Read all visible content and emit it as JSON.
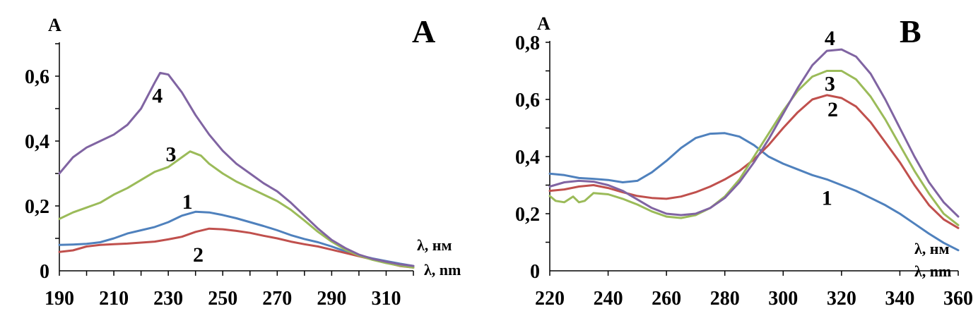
{
  "colors": {
    "1": "#4f81bd",
    "2": "#c0504d",
    "3": "#9bbb59",
    "4": "#8064a2"
  },
  "chart_data": [
    {
      "type": "line",
      "panel_label": "A",
      "ylabel": "A",
      "xlabel_ru": "λ, нм",
      "xlabel_en": "λ, nm",
      "xlim": [
        190,
        320
      ],
      "ylim": [
        0,
        0.7
      ],
      "x_ticks": [
        "190",
        "210",
        "230",
        "250",
        "270",
        "290",
        "310"
      ],
      "y_ticks": [
        "0",
        "0,2",
        "0,4",
        "0,6"
      ],
      "series": [
        {
          "name": "1",
          "color_key": "1",
          "x": [
            190,
            195,
            200,
            205,
            210,
            215,
            220,
            225,
            230,
            235,
            240,
            245,
            250,
            255,
            260,
            265,
            270,
            275,
            280,
            285,
            290,
            295,
            300,
            305,
            310,
            315,
            320
          ],
          "y": [
            0.08,
            0.081,
            0.083,
            0.088,
            0.1,
            0.115,
            0.125,
            0.135,
            0.15,
            0.17,
            0.182,
            0.18,
            0.172,
            0.162,
            0.15,
            0.138,
            0.125,
            0.11,
            0.098,
            0.088,
            0.075,
            0.06,
            0.048,
            0.038,
            0.03,
            0.022,
            0.015
          ]
        },
        {
          "name": "2",
          "color_key": "2",
          "x": [
            190,
            195,
            200,
            205,
            210,
            215,
            220,
            225,
            230,
            235,
            240,
            245,
            250,
            255,
            260,
            265,
            270,
            275,
            280,
            285,
            290,
            295,
            300,
            305,
            310,
            315,
            320
          ],
          "y": [
            0.058,
            0.063,
            0.075,
            0.08,
            0.082,
            0.084,
            0.087,
            0.09,
            0.097,
            0.105,
            0.12,
            0.13,
            0.128,
            0.123,
            0.117,
            0.108,
            0.1,
            0.09,
            0.082,
            0.075,
            0.065,
            0.055,
            0.045,
            0.035,
            0.025,
            0.015,
            0.01
          ]
        },
        {
          "name": "3",
          "color_key": "3",
          "x": [
            190,
            195,
            200,
            205,
            210,
            215,
            220,
            225,
            230,
            235,
            238,
            242,
            245,
            250,
            255,
            260,
            265,
            270,
            275,
            280,
            285,
            290,
            295,
            300,
            305,
            310,
            315,
            320
          ],
          "y": [
            0.16,
            0.18,
            0.195,
            0.21,
            0.235,
            0.255,
            0.28,
            0.305,
            0.32,
            0.35,
            0.368,
            0.355,
            0.33,
            0.3,
            0.275,
            0.255,
            0.235,
            0.215,
            0.188,
            0.155,
            0.12,
            0.09,
            0.065,
            0.047,
            0.034,
            0.024,
            0.016,
            0.01
          ]
        },
        {
          "name": "4",
          "color_key": "4",
          "x": [
            190,
            195,
            200,
            205,
            210,
            215,
            220,
            225,
            227,
            230,
            235,
            240,
            245,
            250,
            255,
            260,
            265,
            270,
            275,
            280,
            285,
            290,
            295,
            300,
            305,
            310,
            315,
            320
          ],
          "y": [
            0.3,
            0.35,
            0.38,
            0.4,
            0.42,
            0.45,
            0.5,
            0.58,
            0.61,
            0.605,
            0.55,
            0.48,
            0.42,
            0.37,
            0.33,
            0.3,
            0.27,
            0.245,
            0.21,
            0.17,
            0.13,
            0.095,
            0.07,
            0.05,
            0.037,
            0.028,
            0.02,
            0.015
          ]
        }
      ],
      "annotations": [
        {
          "text": "4",
          "x": 226,
          "y": 0.54
        },
        {
          "text": "3",
          "x": 231,
          "y": 0.36
        },
        {
          "text": "1",
          "x": 237,
          "y": 0.213
        },
        {
          "text": "2",
          "x": 241,
          "y": 0.05
        }
      ]
    },
    {
      "type": "line",
      "panel_label": "B",
      "ylabel": "A",
      "xlabel_ru": "λ, нм",
      "xlabel_en": "λ, nm",
      "xlim": [
        220,
        360
      ],
      "ylim": [
        0,
        0.8
      ],
      "x_ticks": [
        "220",
        "240",
        "260",
        "280",
        "300",
        "320",
        "340",
        "360"
      ],
      "y_ticks": [
        "0",
        "0,2",
        "0,4",
        "0,6",
        "0,8"
      ],
      "series": [
        {
          "name": "1",
          "color_key": "1",
          "x": [
            220,
            225,
            230,
            235,
            240,
            245,
            250,
            255,
            260,
            265,
            270,
            275,
            280,
            285,
            290,
            295,
            300,
            305,
            310,
            315,
            320,
            325,
            330,
            335,
            340,
            345,
            350,
            355,
            360
          ],
          "y": [
            0.34,
            0.335,
            0.325,
            0.322,
            0.318,
            0.31,
            0.315,
            0.345,
            0.385,
            0.43,
            0.465,
            0.48,
            0.482,
            0.47,
            0.44,
            0.4,
            0.375,
            0.355,
            0.335,
            0.32,
            0.3,
            0.28,
            0.255,
            0.23,
            0.2,
            0.165,
            0.13,
            0.098,
            0.072
          ]
        },
        {
          "name": "2",
          "color_key": "2",
          "x": [
            220,
            225,
            230,
            235,
            240,
            245,
            250,
            255,
            260,
            265,
            270,
            275,
            280,
            285,
            290,
            295,
            300,
            305,
            310,
            315,
            320,
            325,
            330,
            335,
            340,
            345,
            350,
            355,
            360
          ],
          "y": [
            0.28,
            0.285,
            0.295,
            0.3,
            0.29,
            0.275,
            0.262,
            0.255,
            0.252,
            0.26,
            0.275,
            0.295,
            0.32,
            0.35,
            0.39,
            0.44,
            0.5,
            0.555,
            0.6,
            0.615,
            0.605,
            0.575,
            0.52,
            0.45,
            0.38,
            0.3,
            0.23,
            0.18,
            0.15
          ]
        },
        {
          "name": "3",
          "color_key": "3",
          "x": [
            220,
            222,
            225,
            228,
            230,
            232,
            235,
            240,
            245,
            250,
            255,
            260,
            265,
            270,
            275,
            280,
            285,
            290,
            295,
            300,
            305,
            310,
            315,
            320,
            325,
            330,
            335,
            340,
            345,
            350,
            355,
            360
          ],
          "y": [
            0.262,
            0.245,
            0.24,
            0.26,
            0.24,
            0.245,
            0.272,
            0.268,
            0.252,
            0.232,
            0.208,
            0.19,
            0.185,
            0.195,
            0.22,
            0.26,
            0.32,
            0.4,
            0.48,
            0.56,
            0.63,
            0.68,
            0.7,
            0.7,
            0.67,
            0.61,
            0.53,
            0.44,
            0.35,
            0.27,
            0.2,
            0.16
          ]
        },
        {
          "name": "4",
          "color_key": "4",
          "x": [
            220,
            225,
            230,
            235,
            240,
            245,
            250,
            255,
            260,
            265,
            270,
            275,
            280,
            285,
            290,
            295,
            300,
            305,
            310,
            315,
            320,
            325,
            330,
            335,
            340,
            345,
            350,
            355,
            360
          ],
          "y": [
            0.295,
            0.31,
            0.315,
            0.312,
            0.3,
            0.28,
            0.25,
            0.22,
            0.2,
            0.195,
            0.2,
            0.22,
            0.255,
            0.31,
            0.38,
            0.46,
            0.55,
            0.64,
            0.72,
            0.77,
            0.775,
            0.75,
            0.69,
            0.6,
            0.5,
            0.4,
            0.31,
            0.24,
            0.19
          ]
        }
      ],
      "annotations": [
        {
          "text": "4",
          "x": 316,
          "y": 0.815
        },
        {
          "text": "3",
          "x": 316,
          "y": 0.655
        },
        {
          "text": "2",
          "x": 317,
          "y": 0.565
        },
        {
          "text": "1",
          "x": 315,
          "y": 0.255
        }
      ]
    }
  ]
}
